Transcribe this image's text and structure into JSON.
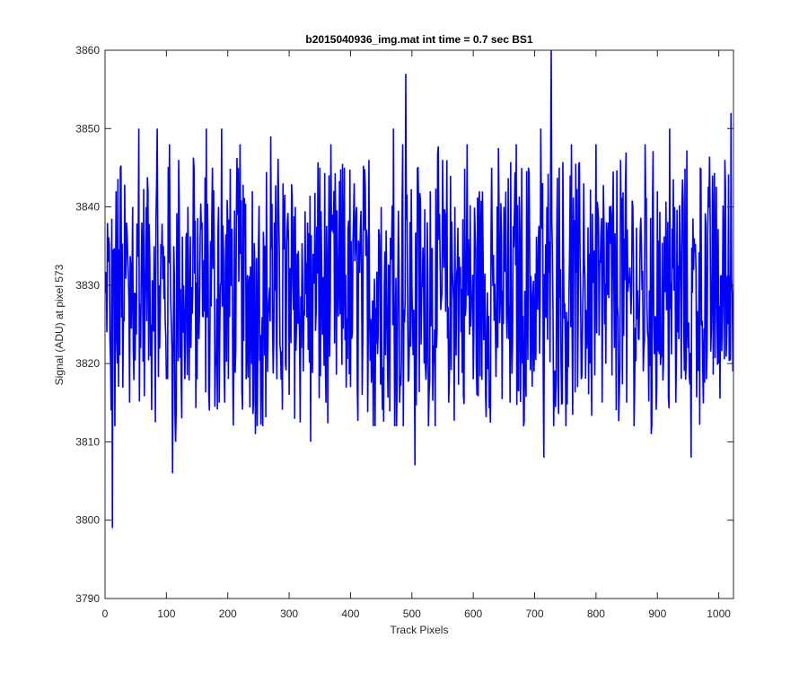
{
  "chart_data": {
    "type": "line",
    "title": "b2015040936_img.mat int time = 0.7 sec   BS1",
    "xlabel": "Track Pixels",
    "ylabel": "Signal (ADU) at pixel 573",
    "xlim": [
      0,
      1024
    ],
    "ylim": [
      3790,
      3860
    ],
    "xticks": [
      0,
      100,
      200,
      300,
      400,
      500,
      600,
      700,
      800,
      900,
      1000
    ],
    "yticks": [
      3790,
      3800,
      3810,
      3820,
      3830,
      3840,
      3850,
      3860
    ],
    "grid": false,
    "line_color": "#0000ff",
    "axes_color": "#262626",
    "series": [
      {
        "note_sampled": "approximate trace: 1024 samples around ~3829 with spread ~±20, min ~3799 near x=12, max ~3860 near x=727",
        "x": [
          1,
          3,
          5,
          7,
          9,
          10,
          12,
          14,
          16,
          18,
          20,
          25,
          30,
          35,
          40,
          45,
          50,
          55,
          58,
          60,
          65,
          70,
          75,
          80,
          85,
          88,
          90,
          95,
          100,
          105,
          108,
          110,
          112,
          115,
          120,
          125,
          128,
          130,
          135,
          140,
          145,
          150,
          155,
          160,
          165,
          170,
          175,
          180,
          185,
          188,
          190,
          195,
          200,
          210,
          220,
          230,
          240,
          245,
          250,
          260,
          270,
          280,
          290,
          300,
          310,
          320,
          330,
          335,
          340,
          350,
          360,
          370,
          380,
          390,
          400,
          410,
          420,
          430,
          440,
          450,
          460,
          470,
          480,
          485,
          490,
          495,
          500,
          505,
          510,
          520,
          530,
          540,
          550,
          560,
          570,
          580,
          590,
          600,
          610,
          620,
          630,
          640,
          650,
          660,
          670,
          680,
          690,
          700,
          710,
          715,
          720,
          727,
          730,
          740,
          750,
          760,
          770,
          780,
          790,
          800,
          810,
          820,
          830,
          840,
          850,
          860,
          870,
          880,
          890,
          900,
          910,
          920,
          930,
          940,
          950,
          955,
          960,
          970,
          980,
          990,
          1000,
          1010,
          1015,
          1020,
          1023
        ],
        "y": [
          3829,
          3824,
          3833,
          3835,
          3820,
          3814,
          3799,
          3832,
          3812,
          3842,
          3820,
          3845,
          3826,
          3838,
          3815,
          3840,
          3829,
          3850,
          3822,
          3838,
          3828,
          3842,
          3825,
          3835,
          3850,
          3830,
          3827,
          3835,
          3818,
          3848,
          3825,
          3806,
          3835,
          3810,
          3846,
          3813,
          3830,
          3818,
          3840,
          3822,
          3845,
          3818,
          3836,
          3826,
          3850,
          3814,
          3845,
          3820,
          3840,
          3830,
          3850,
          3815,
          3838,
          3822,
          3848,
          3818,
          3842,
          3811,
          3835,
          3821,
          3849,
          3818,
          3843,
          3816,
          3840,
          3822,
          3838,
          3810,
          3832,
          3845,
          3815,
          3838,
          3826,
          3845,
          3817,
          3840,
          3823,
          3846,
          3812,
          3840,
          3822,
          3850,
          3815,
          3848,
          3857,
          3818,
          3830,
          3807,
          3845,
          3820,
          3842,
          3822,
          3846,
          3815,
          3840,
          3824,
          3848,
          3818,
          3842,
          3816,
          3845,
          3822,
          3840,
          3815,
          3848,
          3820,
          3845,
          3823,
          3850,
          3808,
          3840,
          3860,
          3826,
          3845,
          3822,
          3848,
          3817,
          3843,
          3820,
          3848,
          3815,
          3838,
          3822,
          3846,
          3815,
          3840,
          3823,
          3848,
          3811,
          3842,
          3820,
          3850,
          3815,
          3840,
          3822,
          3808,
          3836,
          3845,
          3818,
          3844,
          3820,
          3846,
          3825,
          3852,
          3819
        ]
      }
    ]
  }
}
